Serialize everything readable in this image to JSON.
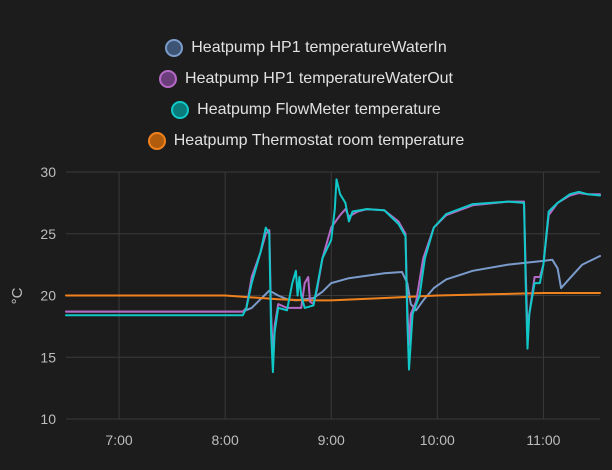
{
  "chart_data": {
    "type": "line",
    "title": "",
    "ylabel": "°C",
    "xlabel": "",
    "ylim": [
      10,
      30
    ],
    "yticks": [
      10,
      15,
      20,
      25,
      30
    ],
    "xlim": [
      "06:30",
      "11:32"
    ],
    "xticks": [
      "7:00",
      "8:00",
      "9:00",
      "10:00",
      "11:00"
    ],
    "grid": true,
    "legend_position": "top-center",
    "series": [
      {
        "name": "Heatpump HP1 temperatureWaterIn",
        "color": "#7a9bcb",
        "fill": "#3e5474",
        "points": [
          [
            "06:30",
            18.7
          ],
          [
            "08:10",
            18.7
          ],
          [
            "08:15",
            19.0
          ],
          [
            "08:20",
            19.7
          ],
          [
            "08:25",
            20.4
          ],
          [
            "08:30",
            20.0
          ],
          [
            "08:35",
            19.7
          ],
          [
            "08:40",
            19.6
          ],
          [
            "08:45",
            19.7
          ],
          [
            "08:50",
            19.8
          ],
          [
            "08:55",
            20.3
          ],
          [
            "09:00",
            21.0
          ],
          [
            "09:10",
            21.4
          ],
          [
            "09:20",
            21.6
          ],
          [
            "09:30",
            21.8
          ],
          [
            "09:40",
            21.9
          ],
          [
            "09:43",
            21.0
          ],
          [
            "09:45",
            19.3
          ],
          [
            "09:48",
            18.8
          ],
          [
            "09:52",
            19.6
          ],
          [
            "09:58",
            20.6
          ],
          [
            "10:05",
            21.3
          ],
          [
            "10:20",
            22.0
          ],
          [
            "10:40",
            22.5
          ],
          [
            "11:00",
            22.8
          ],
          [
            "11:05",
            22.9
          ],
          [
            "11:08",
            22.2
          ],
          [
            "11:10",
            20.6
          ],
          [
            "11:15",
            21.4
          ],
          [
            "11:22",
            22.5
          ],
          [
            "11:32",
            23.2
          ]
        ]
      },
      {
        "name": "Heatpump HP1 temperatureWaterOut",
        "color": "#b56ac7",
        "fill": "#6b3d7a",
        "points": [
          [
            "06:30",
            18.7
          ],
          [
            "08:10",
            18.7
          ],
          [
            "08:12",
            19.0
          ],
          [
            "08:15",
            21.5
          ],
          [
            "08:20",
            23.5
          ],
          [
            "08:23",
            25.0
          ],
          [
            "08:25",
            25.3
          ],
          [
            "08:26",
            18.5
          ],
          [
            "08:27",
            15.0
          ],
          [
            "08:28",
            17.5
          ],
          [
            "08:30",
            19.3
          ],
          [
            "08:35",
            19.0
          ],
          [
            "08:40",
            19.0
          ],
          [
            "08:43",
            19.0
          ],
          [
            "08:45",
            21.0
          ],
          [
            "08:47",
            21.5
          ],
          [
            "08:48",
            19.5
          ],
          [
            "08:50",
            19.3
          ],
          [
            "08:52",
            20.5
          ],
          [
            "08:55",
            23.0
          ],
          [
            "09:00",
            25.5
          ],
          [
            "09:05",
            26.5
          ],
          [
            "09:08",
            27.0
          ],
          [
            "09:10",
            26.4
          ],
          [
            "09:15",
            26.8
          ],
          [
            "09:20",
            27.0
          ],
          [
            "09:30",
            26.9
          ],
          [
            "09:38",
            26.0
          ],
          [
            "09:42",
            25.0
          ],
          [
            "09:43",
            19.0
          ],
          [
            "09:44",
            16.0
          ],
          [
            "09:45",
            18.5
          ],
          [
            "09:48",
            19.5
          ],
          [
            "09:52",
            23.0
          ],
          [
            "09:58",
            25.5
          ],
          [
            "10:05",
            26.5
          ],
          [
            "10:20",
            27.3
          ],
          [
            "10:40",
            27.6
          ],
          [
            "10:49",
            27.6
          ],
          [
            "10:50",
            22.0
          ],
          [
            "10:51",
            17.0
          ],
          [
            "10:52",
            18.5
          ],
          [
            "10:55",
            21.5
          ],
          [
            "10:58",
            21.5
          ],
          [
            "11:00",
            22.5
          ],
          [
            "11:03",
            26.5
          ],
          [
            "11:08",
            27.5
          ],
          [
            "11:15",
            28.1
          ],
          [
            "11:20",
            28.3
          ],
          [
            "11:25",
            28.2
          ],
          [
            "11:32",
            28.2
          ]
        ]
      },
      {
        "name": "Heatpump FlowMeter temperature",
        "color": "#10c8c8",
        "fill": "#0b7c7c",
        "points": [
          [
            "06:30",
            18.4
          ],
          [
            "08:10",
            18.4
          ],
          [
            "08:12",
            19.0
          ],
          [
            "08:15",
            21.0
          ],
          [
            "08:20",
            23.5
          ],
          [
            "08:23",
            25.5
          ],
          [
            "08:25",
            25.0
          ],
          [
            "08:26",
            17.0
          ],
          [
            "08:27",
            13.8
          ],
          [
            "08:28",
            17.0
          ],
          [
            "08:30",
            19.0
          ],
          [
            "08:35",
            18.8
          ],
          [
            "08:38",
            21.0
          ],
          [
            "08:40",
            22.0
          ],
          [
            "08:41",
            20.0
          ],
          [
            "08:42",
            21.5
          ],
          [
            "08:43",
            20.0
          ],
          [
            "08:45",
            19.0
          ],
          [
            "08:50",
            19.2
          ],
          [
            "08:53",
            21.5
          ],
          [
            "08:55",
            23.0
          ],
          [
            "09:00",
            24.5
          ],
          [
            "09:02",
            27.0
          ],
          [
            "09:03",
            29.4
          ],
          [
            "09:05",
            28.2
          ],
          [
            "09:08",
            27.5
          ],
          [
            "09:10",
            26.0
          ],
          [
            "09:12",
            26.8
          ],
          [
            "09:20",
            27.0
          ],
          [
            "09:30",
            26.9
          ],
          [
            "09:38",
            25.8
          ],
          [
            "09:42",
            24.8
          ],
          [
            "09:43",
            18.0
          ],
          [
            "09:44",
            14.0
          ],
          [
            "09:46",
            18.5
          ],
          [
            "09:50",
            20.0
          ],
          [
            "09:53",
            23.0
          ],
          [
            "09:58",
            25.5
          ],
          [
            "10:05",
            26.6
          ],
          [
            "10:20",
            27.4
          ],
          [
            "10:40",
            27.6
          ],
          [
            "10:49",
            27.5
          ],
          [
            "10:50",
            21.0
          ],
          [
            "10:51",
            15.7
          ],
          [
            "10:52",
            18.5
          ],
          [
            "10:55",
            21.0
          ],
          [
            "10:58",
            21.0
          ],
          [
            "11:00",
            22.5
          ],
          [
            "11:03",
            26.8
          ],
          [
            "11:08",
            27.5
          ],
          [
            "11:15",
            28.2
          ],
          [
            "11:20",
            28.4
          ],
          [
            "11:25",
            28.2
          ],
          [
            "11:32",
            28.1
          ]
        ]
      },
      {
        "name": "Heatpump Thermostat room temperature",
        "color": "#f0821e",
        "fill": "#b05c0c",
        "points": [
          [
            "06:30",
            20.0
          ],
          [
            "07:00",
            20.0
          ],
          [
            "07:30",
            20.0
          ],
          [
            "08:00",
            20.0
          ],
          [
            "08:30",
            19.7
          ],
          [
            "08:45",
            19.6
          ],
          [
            "09:00",
            19.6
          ],
          [
            "09:30",
            19.8
          ],
          [
            "10:00",
            20.0
          ],
          [
            "10:30",
            20.1
          ],
          [
            "11:00",
            20.2
          ],
          [
            "11:32",
            20.2
          ]
        ]
      }
    ]
  }
}
